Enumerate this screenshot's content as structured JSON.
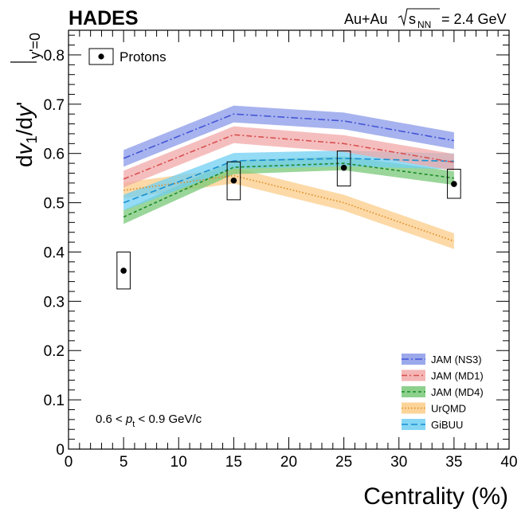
{
  "chart_data": {
    "type": "line",
    "experiment": "HADES",
    "system": {
      "prefix": "Au+Au",
      "sqrt": "s",
      "sub": "NN",
      "suffix": "= 2.4 GeV"
    },
    "xlabel": "Centrality (%)",
    "ylabel": {
      "d1": "d",
      "v": "v",
      "sub1": "1",
      "slash": "/d",
      "y": "y",
      "prime": "'",
      "sub": "y'=0"
    },
    "xlim": [
      0,
      40
    ],
    "ylim": [
      0,
      0.85
    ],
    "x_ticks": [
      0,
      5,
      10,
      15,
      20,
      25,
      30,
      35,
      40
    ],
    "x_tick_labels": [
      "0",
      "5",
      "10",
      "15",
      "20",
      "25",
      "30",
      "35",
      "40"
    ],
    "y_ticks": [
      0,
      0.1,
      0.2,
      0.3,
      0.4,
      0.5,
      0.6,
      0.7,
      0.8
    ],
    "y_tick_labels": [
      "0",
      "0.1",
      "0.2",
      "0.3",
      "0.4",
      "0.5",
      "0.6",
      "0.7",
      "0.8"
    ],
    "annotation": {
      "pre": "0.6 < ",
      "p": "p",
      "sub": "t",
      "post": " < 0.9 GeV/c"
    },
    "data_series": {
      "name": "Protons",
      "x": [
        5,
        15,
        25,
        35
      ],
      "y": [
        0.362,
        0.545,
        0.571,
        0.538
      ],
      "sys_lo": [
        0.325,
        0.506,
        0.534,
        0.509
      ],
      "sys_hi": [
        0.4,
        0.583,
        0.605,
        0.568
      ],
      "sys_halfwidth_x": 0.6
    },
    "series": [
      {
        "name": "JAM (NS3)",
        "x": [
          5,
          15,
          25,
          35
        ],
        "values": [
          0.59,
          0.68,
          0.666,
          0.626
        ],
        "band": 0.017,
        "line_color": "#4455d6",
        "band_color": "#8a9ae8",
        "dash": "9,3,2,3"
      },
      {
        "name": "JAM (MD1)",
        "x": [
          5,
          15,
          25,
          35
        ],
        "values": [
          0.548,
          0.638,
          0.62,
          0.582
        ],
        "band": 0.017,
        "line_color": "#d85050",
        "band_color": "#f2a8a8",
        "dash": "7,3,2,3"
      },
      {
        "name": "JAM (MD4)",
        "x": [
          5,
          15,
          25,
          35
        ],
        "values": [
          0.471,
          0.572,
          0.58,
          0.55
        ],
        "band": 0.014,
        "line_color": "#1f8a2a",
        "band_color": "#78c878",
        "dash": "4,3"
      },
      {
        "name": "UrQMD",
        "x": [
          5,
          15,
          25,
          35
        ],
        "values": [
          0.525,
          0.555,
          0.5,
          0.422
        ],
        "band": 0.016,
        "line_color": "#e08a20",
        "band_color": "#fbcc88",
        "dash": "1.5,2.5"
      },
      {
        "name": "GiBUU",
        "x": [
          5,
          15,
          25,
          35
        ],
        "values": [
          0.5,
          0.585,
          0.59,
          0.584
        ],
        "band": 0.016,
        "line_color": "#1a90d0",
        "band_color": "#70cff2",
        "dash": "8,4"
      }
    ]
  }
}
